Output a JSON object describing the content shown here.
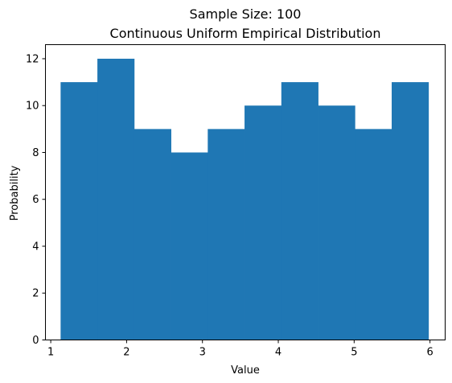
{
  "chart_data": {
    "type": "bar",
    "title": "Sample Size: 100",
    "subtitle": "Continuous Uniform Empirical Distribution",
    "xlabel": "Value",
    "ylabel": "Probability",
    "xlim": [
      0.93,
      6.2
    ],
    "ylim": [
      0,
      12.6
    ],
    "xticks": [
      1,
      2,
      3,
      4,
      5,
      6
    ],
    "yticks": [
      0,
      2,
      4,
      6,
      8,
      10,
      12
    ],
    "bar_color": "#1f77b4",
    "grid": false,
    "bins": [
      {
        "x0": 1.13,
        "x1": 1.615,
        "value": 11
      },
      {
        "x0": 1.615,
        "x1": 2.1,
        "value": 12
      },
      {
        "x0": 2.1,
        "x1": 2.585,
        "value": 9
      },
      {
        "x0": 2.585,
        "x1": 3.07,
        "value": 8
      },
      {
        "x0": 3.07,
        "x1": 3.555,
        "value": 9
      },
      {
        "x0": 3.555,
        "x1": 4.04,
        "value": 10
      },
      {
        "x0": 4.04,
        "x1": 4.525,
        "value": 11
      },
      {
        "x0": 4.525,
        "x1": 5.01,
        "value": 10
      },
      {
        "x0": 5.01,
        "x1": 5.495,
        "value": 9
      },
      {
        "x0": 5.495,
        "x1": 5.98,
        "value": 11
      }
    ]
  }
}
